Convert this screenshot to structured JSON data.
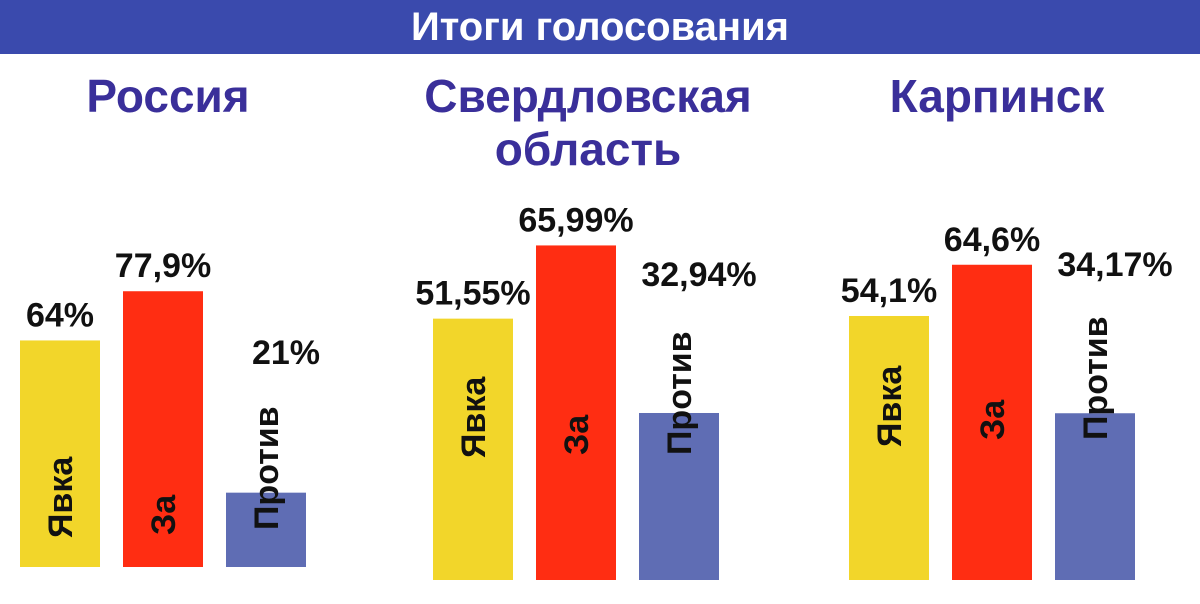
{
  "header": {
    "title": "Итоги голосования"
  },
  "colors": {
    "banner": "#3a4aad",
    "title": "#3a2f9a",
    "turnout": "#f2d62a",
    "for": "#ff2d12",
    "against": "#5f6db4",
    "text": "#111111"
  },
  "chart_data": [
    {
      "type": "bar",
      "title": "Россия",
      "categories": [
        "Явка",
        "За",
        "Против"
      ],
      "values": [
        64,
        77.9,
        21
      ],
      "value_labels": [
        "64%",
        "77,9%",
        "21%"
      ]
    },
    {
      "type": "bar",
      "title": "Свердловская область",
      "categories": [
        "Явка",
        "За",
        "Против"
      ],
      "values": [
        51.55,
        65.99,
        32.94
      ],
      "value_labels": [
        "51,55%",
        "65,99%",
        "32,94%"
      ]
    },
    {
      "type": "bar",
      "title": "Карпинск",
      "categories": [
        "Явка",
        "За",
        "Против"
      ],
      "values": [
        54.1,
        64.6,
        34.17
      ],
      "value_labels": [
        "54,1%",
        "64,6%",
        "34,17%"
      ]
    }
  ]
}
